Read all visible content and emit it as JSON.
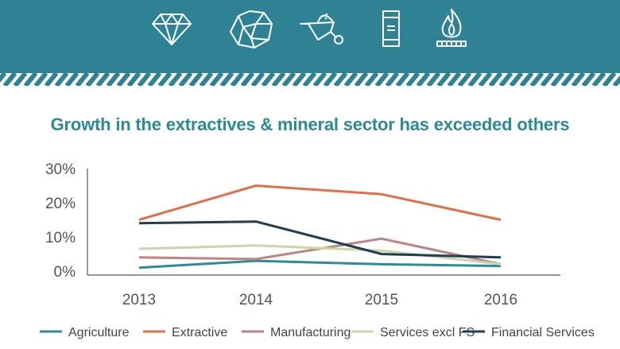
{
  "header": {
    "icons": [
      "diamond-icon",
      "ore-rock-icon",
      "wheelbarrow-icon",
      "beverage-can-icon",
      "gas-flame-icon"
    ]
  },
  "colors": {
    "banner": "#2f8294",
    "title": "#2b8a96"
  },
  "chart_data": {
    "type": "line",
    "title": "Growth in the extractives & mineral sector has exceeded others",
    "categories": [
      "2013",
      "2014",
      "2015",
      "2016"
    ],
    "ylim": [
      0,
      30
    ],
    "yticks": [
      "30%",
      "20%",
      "10%",
      "0%"
    ],
    "ytick_values": [
      30,
      20,
      10,
      0
    ],
    "xlabel": "",
    "ylabel": "",
    "legend_position": "bottom",
    "series": [
      {
        "name": "Agriculture",
        "color": "#2a8c9a",
        "values": [
          1,
          3,
          2,
          1.5
        ]
      },
      {
        "name": "Extractive",
        "color": "#e07048",
        "values": [
          15,
          25,
          22.5,
          15
        ]
      },
      {
        "name": "Manufacturing",
        "color": "#bb8585",
        "values": [
          4,
          3.5,
          9.5,
          2
        ]
      },
      {
        "name": "Services excl FS",
        "color": "#ccd6a8",
        "values": [
          6.5,
          7.5,
          6,
          2
        ]
      },
      {
        "name": "Financial Services",
        "color": "#1f3d55",
        "values": [
          14,
          14.5,
          5,
          4
        ]
      }
    ]
  }
}
